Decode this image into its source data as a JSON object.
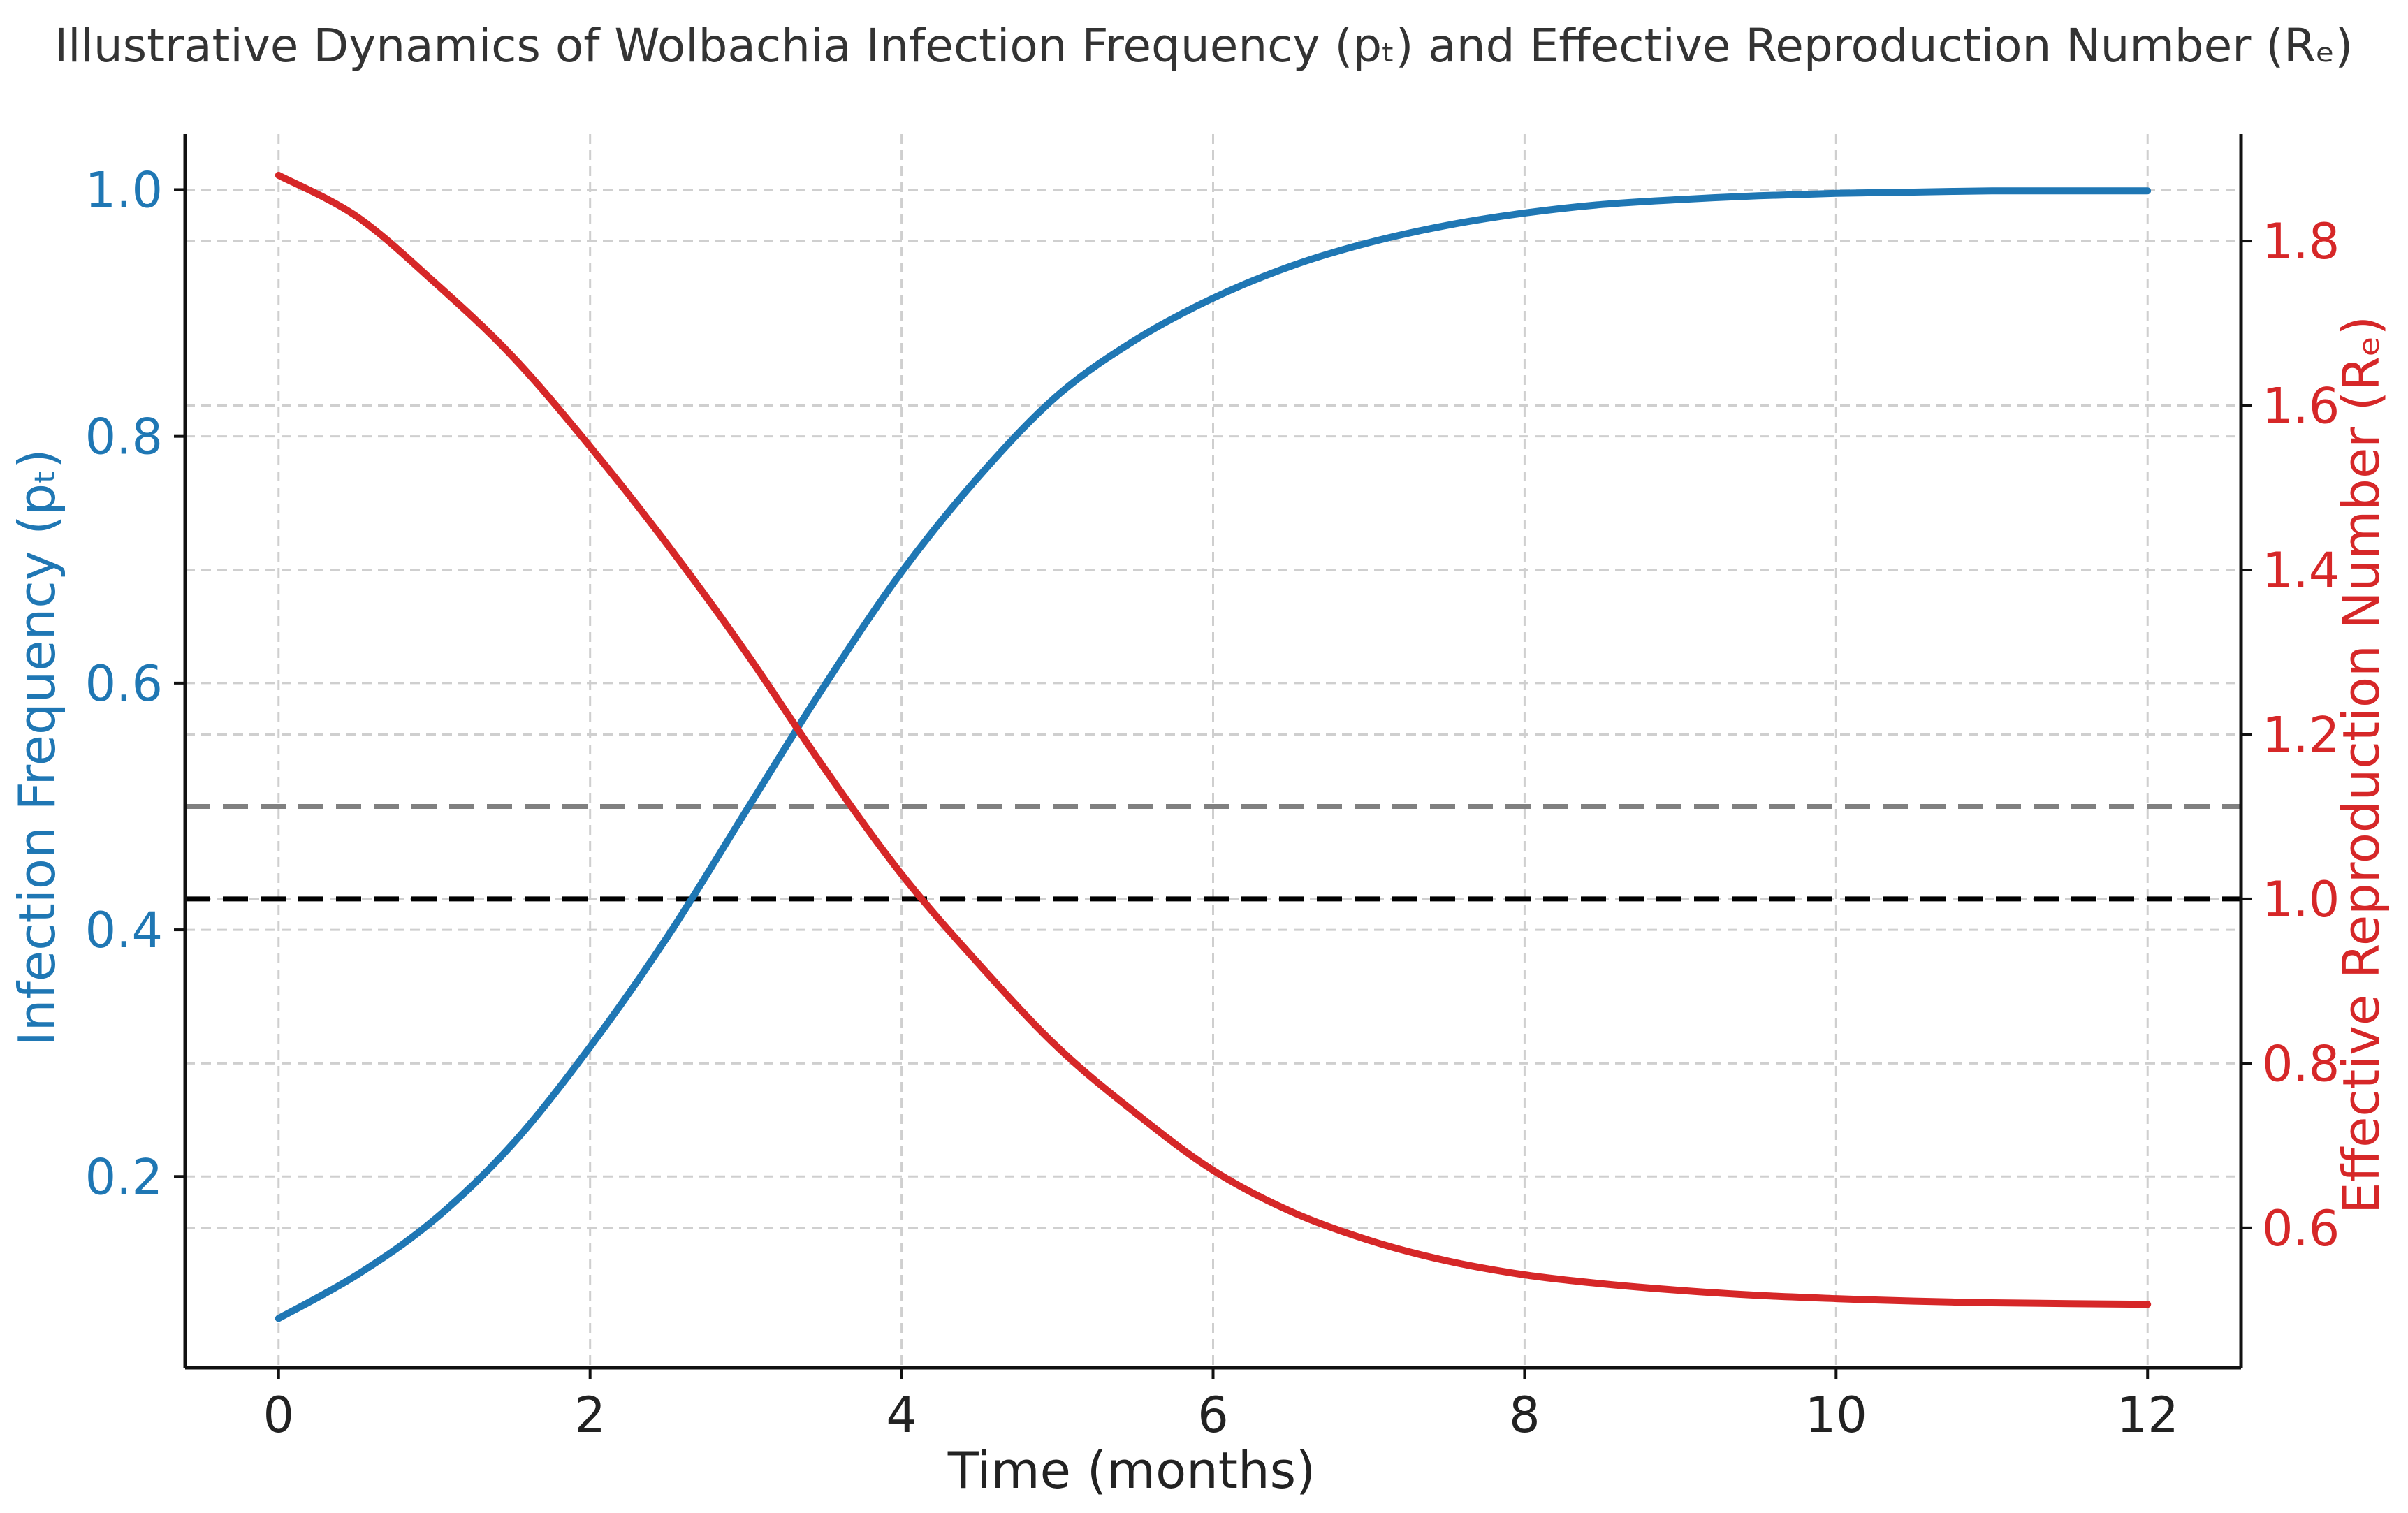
{
  "chart_data": {
    "type": "line",
    "title": "Illustrative Dynamics of Wolbachia Infection Frequency (pₜ) and Effective Reproduction Number (Rₑ)",
    "xlabel": "Time (months)",
    "ylabel_left": "Infection Frequency (pₜ)",
    "ylabel_right": "Effective Reproduction Number (Rₑ)",
    "xlim": [
      -0.6,
      12.6
    ],
    "ylim_left": [
      0.045,
      1.045
    ],
    "ylim_right": [
      0.43,
      1.93
    ],
    "x_ticks": [
      0,
      2,
      4,
      6,
      8,
      10,
      12
    ],
    "y_ticks_left": [
      0.2,
      0.4,
      0.6,
      0.8,
      1.0
    ],
    "y_ticks_right": [
      0.6,
      0.8,
      1.0,
      1.2,
      1.4,
      1.6,
      1.8
    ],
    "x_tick_labels": [
      "0",
      "2",
      "4",
      "6",
      "8",
      "10",
      "12"
    ],
    "y_tick_labels_left": [
      "0.2",
      "0.4",
      "0.6",
      "0.8",
      "1.0"
    ],
    "y_tick_labels_right": [
      "0.6",
      "0.8",
      "1.0",
      "1.2",
      "1.4",
      "1.6",
      "1.8"
    ],
    "grid": true,
    "colors": {
      "pt": "#1f77b4",
      "re": "#d62728",
      "threshold_gray": "#808080",
      "threshold_black": "#000000",
      "left_axis_text": "#1f77b4",
      "right_axis_text": "#d62728"
    },
    "x": [
      0,
      0.5,
      1,
      1.5,
      2,
      2.5,
      3,
      3.5,
      4,
      4.5,
      5,
      5.5,
      6,
      6.5,
      7,
      7.5,
      8,
      8.5,
      9,
      9.5,
      10,
      10.5,
      11,
      11.5,
      12
    ],
    "series": [
      {
        "axis": "left",
        "values": [
          0.085,
          0.12,
          0.165,
          0.226,
          0.305,
          0.395,
          0.496,
          0.597,
          0.69,
          0.768,
          0.833,
          0.878,
          0.912,
          0.938,
          0.957,
          0.971,
          0.981,
          0.988,
          0.992,
          0.995,
          0.997,
          0.998,
          0.999,
          0.999,
          0.999
        ]
      },
      {
        "axis": "right",
        "values": [
          1.88,
          1.83,
          1.75,
          1.66,
          1.55,
          1.43,
          1.3,
          1.16,
          1.03,
          0.92,
          0.82,
          0.74,
          0.67,
          0.62,
          0.585,
          0.56,
          0.543,
          0.532,
          0.524,
          0.518,
          0.514,
          0.511,
          0.509,
          0.508,
          0.507
        ]
      }
    ],
    "reference_lines": [
      {
        "axis": "left",
        "y": 0.5,
        "color": "#808080"
      },
      {
        "axis": "right",
        "y": 1.0,
        "color": "#000000"
      }
    ]
  }
}
